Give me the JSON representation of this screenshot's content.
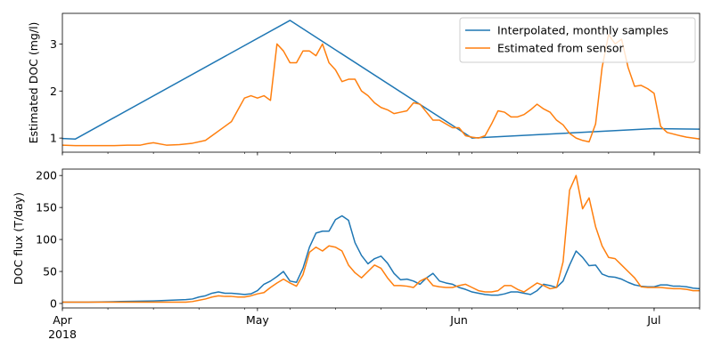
{
  "chart_data": [
    {
      "type": "line",
      "ylabel": "Estimated DOC (mg/l)",
      "xlim": [
        "2018-04-01",
        "2018-07-08"
      ],
      "ylim": [
        0.7,
        3.65
      ],
      "yticks": [
        1,
        2,
        3
      ],
      "legend": {
        "placement": "top-right",
        "entries": [
          "Interpolated, monthly samples",
          "Estimated from sensor"
        ]
      },
      "series": [
        {
          "name": "Interpolated, monthly samples",
          "color": "#1f77b4",
          "x": [
            "2018-04-01",
            "2018-04-03",
            "2018-05-06",
            "2018-06-03",
            "2018-07-01",
            "2018-07-08"
          ],
          "y": [
            0.99,
            0.98,
            3.5,
            1.0,
            1.2,
            1.19
          ]
        },
        {
          "name": "Estimated from sensor",
          "color": "#ff7f0e",
          "x": [
            "2018-04-01",
            "2018-04-03",
            "2018-04-05",
            "2018-04-07",
            "2018-04-09",
            "2018-04-11",
            "2018-04-13",
            "2018-04-14",
            "2018-04-15",
            "2018-04-17",
            "2018-04-19",
            "2018-04-21",
            "2018-04-23",
            "2018-04-24",
            "2018-04-26",
            "2018-04-27",
            "2018-04-28",
            "2018-04-29",
            "2018-04-30",
            "2018-05-01",
            "2018-05-02",
            "2018-05-03",
            "2018-05-04",
            "2018-05-05",
            "2018-05-06",
            "2018-05-07",
            "2018-05-08",
            "2018-05-09",
            "2018-05-10",
            "2018-05-11",
            "2018-05-12",
            "2018-05-13",
            "2018-05-14",
            "2018-05-15",
            "2018-05-16",
            "2018-05-17",
            "2018-05-18",
            "2018-05-19",
            "2018-05-20",
            "2018-05-21",
            "2018-05-22",
            "2018-05-23",
            "2018-05-24",
            "2018-05-25",
            "2018-05-26",
            "2018-05-27",
            "2018-05-28",
            "2018-05-29",
            "2018-05-31",
            "2018-06-01",
            "2018-06-02",
            "2018-06-03",
            "2018-06-04",
            "2018-06-05",
            "2018-06-06",
            "2018-06-07",
            "2018-06-08",
            "2018-06-09",
            "2018-06-10",
            "2018-06-11",
            "2018-06-12",
            "2018-06-13",
            "2018-06-14",
            "2018-06-15",
            "2018-06-16",
            "2018-06-17",
            "2018-06-18",
            "2018-06-19",
            "2018-06-20",
            "2018-06-21",
            "2018-06-22",
            "2018-06-23",
            "2018-06-24",
            "2018-06-25",
            "2018-06-26",
            "2018-06-27",
            "2018-06-28",
            "2018-06-29",
            "2018-06-30",
            "2018-07-01",
            "2018-07-02",
            "2018-07-03",
            "2018-07-05",
            "2018-07-06",
            "2018-07-07",
            "2018-07-08"
          ],
          "y": [
            0.85,
            0.84,
            0.84,
            0.84,
            0.84,
            0.85,
            0.85,
            0.88,
            0.9,
            0.85,
            0.86,
            0.89,
            0.95,
            1.05,
            1.25,
            1.35,
            1.6,
            1.85,
            1.9,
            1.85,
            1.9,
            1.8,
            3.0,
            2.85,
            2.6,
            2.6,
            2.85,
            2.85,
            2.75,
            3.0,
            2.6,
            2.45,
            2.2,
            2.25,
            2.25,
            2.0,
            1.9,
            1.75,
            1.65,
            1.6,
            1.52,
            1.55,
            1.58,
            1.75,
            1.72,
            1.55,
            1.38,
            1.38,
            1.22,
            1.22,
            1.05,
            1.02,
            1.0,
            1.05,
            1.3,
            1.58,
            1.55,
            1.45,
            1.45,
            1.5,
            1.6,
            1.72,
            1.62,
            1.55,
            1.38,
            1.28,
            1.1,
            1.0,
            0.95,
            0.92,
            1.3,
            2.5,
            3.2,
            3.0,
            3.1,
            2.5,
            2.1,
            2.12,
            2.05,
            1.95,
            1.25,
            1.12,
            1.05,
            1.02,
            1.0,
            0.98
          ]
        }
      ]
    },
    {
      "type": "line",
      "ylabel": "DOC flux (T/day)",
      "xlim": [
        "2018-04-01",
        "2018-07-08"
      ],
      "ylim": [
        -7,
        210
      ],
      "yticks": [
        0,
        50,
        100,
        150,
        200
      ],
      "xticks": [
        {
          "date": "2018-04-01",
          "label": "Apr",
          "sublabel": "2018"
        },
        {
          "date": "2018-05-01",
          "label": "May",
          "sublabel": ""
        },
        {
          "date": "2018-06-01",
          "label": "Jun",
          "sublabel": ""
        },
        {
          "date": "2018-07-01",
          "label": "Jul",
          "sublabel": ""
        }
      ],
      "series": [
        {
          "name": "Interpolated, monthly samples",
          "color": "#1f77b4",
          "x": [
            "2018-04-01",
            "2018-04-05",
            "2018-04-10",
            "2018-04-15",
            "2018-04-20",
            "2018-04-21",
            "2018-04-22",
            "2018-04-23",
            "2018-04-24",
            "2018-04-25",
            "2018-04-26",
            "2018-04-27",
            "2018-04-28",
            "2018-04-29",
            "2018-04-30",
            "2018-05-01",
            "2018-05-02",
            "2018-05-03",
            "2018-05-04",
            "2018-05-05",
            "2018-05-06",
            "2018-05-07",
            "2018-05-08",
            "2018-05-09",
            "2018-05-10",
            "2018-05-11",
            "2018-05-12",
            "2018-05-13",
            "2018-05-14",
            "2018-05-15",
            "2018-05-16",
            "2018-05-17",
            "2018-05-18",
            "2018-05-19",
            "2018-05-20",
            "2018-05-21",
            "2018-05-22",
            "2018-05-23",
            "2018-05-24",
            "2018-05-25",
            "2018-05-26",
            "2018-05-27",
            "2018-05-28",
            "2018-05-29",
            "2018-05-30",
            "2018-05-31",
            "2018-06-01",
            "2018-06-02",
            "2018-06-03",
            "2018-06-04",
            "2018-06-05",
            "2018-06-06",
            "2018-06-07",
            "2018-06-08",
            "2018-06-09",
            "2018-06-10",
            "2018-06-11",
            "2018-06-12",
            "2018-06-13",
            "2018-06-14",
            "2018-06-15",
            "2018-06-16",
            "2018-06-17",
            "2018-06-18",
            "2018-06-19",
            "2018-06-20",
            "2018-06-21",
            "2018-06-22",
            "2018-06-23",
            "2018-06-24",
            "2018-06-25",
            "2018-06-26",
            "2018-06-27",
            "2018-06-28",
            "2018-06-29",
            "2018-06-30",
            "2018-07-01",
            "2018-07-02",
            "2018-07-03",
            "2018-07-04",
            "2018-07-05",
            "2018-07-06",
            "2018-07-07",
            "2018-07-08"
          ],
          "y": [
            2,
            2,
            3,
            4,
            6,
            7,
            10,
            12,
            16,
            18,
            16,
            16,
            15,
            14,
            15,
            20,
            30,
            35,
            42,
            50,
            35,
            33,
            55,
            88,
            110,
            113,
            113,
            131,
            137,
            130,
            95,
            75,
            62,
            70,
            74,
            63,
            47,
            37,
            38,
            35,
            30,
            40,
            47,
            35,
            32,
            30,
            25,
            22,
            18,
            16,
            14,
            13,
            13,
            15,
            18,
            18,
            16,
            14,
            20,
            30,
            28,
            25,
            35,
            60,
            82,
            72,
            59,
            60,
            46,
            42,
            41,
            38,
            33,
            29,
            27,
            26,
            26,
            29,
            29,
            27,
            27,
            26,
            24,
            23
          ]
        },
        {
          "name": "Estimated from sensor",
          "color": "#ff7f0e",
          "x": [
            "2018-04-01",
            "2018-04-05",
            "2018-04-10",
            "2018-04-15",
            "2018-04-20",
            "2018-04-21",
            "2018-04-22",
            "2018-04-23",
            "2018-04-24",
            "2018-04-25",
            "2018-04-26",
            "2018-04-27",
            "2018-04-28",
            "2018-04-29",
            "2018-04-30",
            "2018-05-01",
            "2018-05-02",
            "2018-05-03",
            "2018-05-04",
            "2018-05-05",
            "2018-05-06",
            "2018-05-07",
            "2018-05-08",
            "2018-05-09",
            "2018-05-10",
            "2018-05-11",
            "2018-05-12",
            "2018-05-13",
            "2018-05-14",
            "2018-05-15",
            "2018-05-16",
            "2018-05-17",
            "2018-05-18",
            "2018-05-19",
            "2018-05-20",
            "2018-05-21",
            "2018-05-22",
            "2018-05-23",
            "2018-05-24",
            "2018-05-25",
            "2018-05-26",
            "2018-05-27",
            "2018-05-28",
            "2018-05-29",
            "2018-05-30",
            "2018-05-31",
            "2018-06-01",
            "2018-06-02",
            "2018-06-03",
            "2018-06-04",
            "2018-06-05",
            "2018-06-06",
            "2018-06-07",
            "2018-06-08",
            "2018-06-09",
            "2018-06-10",
            "2018-06-11",
            "2018-06-12",
            "2018-06-13",
            "2018-06-14",
            "2018-06-15",
            "2018-06-16",
            "2018-06-17",
            "2018-06-18",
            "2018-06-19",
            "2018-06-20",
            "2018-06-21",
            "2018-06-22",
            "2018-06-23",
            "2018-06-24",
            "2018-06-25",
            "2018-06-26",
            "2018-06-27",
            "2018-06-28",
            "2018-06-29",
            "2018-06-30",
            "2018-07-01",
            "2018-07-02",
            "2018-07-03",
            "2018-07-04",
            "2018-07-05",
            "2018-07-06",
            "2018-07-07",
            "2018-07-08"
          ],
          "y": [
            2,
            2,
            2,
            2,
            2,
            3,
            5,
            7,
            10,
            12,
            11,
            11,
            10,
            10,
            12,
            15,
            17,
            25,
            32,
            38,
            32,
            27,
            45,
            80,
            88,
            82,
            90,
            88,
            82,
            60,
            48,
            40,
            50,
            60,
            55,
            40,
            28,
            28,
            27,
            25,
            35,
            40,
            28,
            26,
            25,
            25,
            28,
            30,
            25,
            20,
            18,
            18,
            20,
            28,
            28,
            22,
            18,
            25,
            32,
            28,
            23,
            25,
            65,
            177,
            200,
            148,
            165,
            120,
            90,
            72,
            70,
            60,
            50,
            40,
            26,
            25,
            25,
            25,
            24,
            23,
            23,
            22,
            20,
            20
          ]
        }
      ]
    }
  ]
}
